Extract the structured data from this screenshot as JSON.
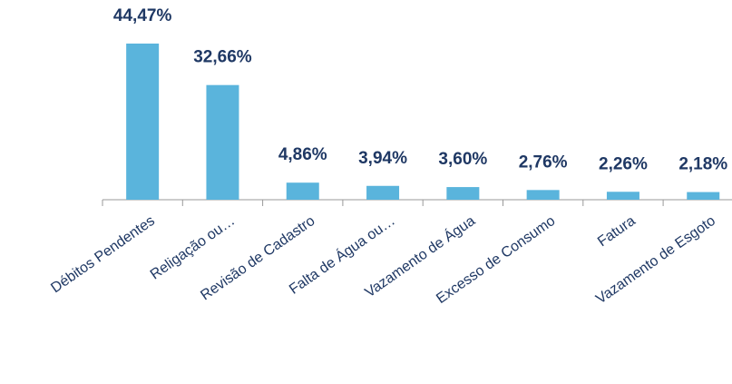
{
  "chart_data": {
    "type": "bar",
    "categories": [
      "Débitos Pendentes",
      "Religação ou…",
      "Revisão de Cadastro",
      "Falta de Água ou…",
      "Vazamento de Água",
      "Excesso de Consumo",
      "Fatura",
      "Vazamento de Esgoto"
    ],
    "values": [
      44.47,
      32.66,
      4.86,
      3.94,
      3.6,
      2.76,
      2.26,
      2.18
    ],
    "value_labels": [
      "44,47%",
      "32,66%",
      "4,86%",
      "3,94%",
      "3,60%",
      "2,76%",
      "2,26%",
      "2,18%"
    ],
    "color": "#5ab4dc"
  }
}
